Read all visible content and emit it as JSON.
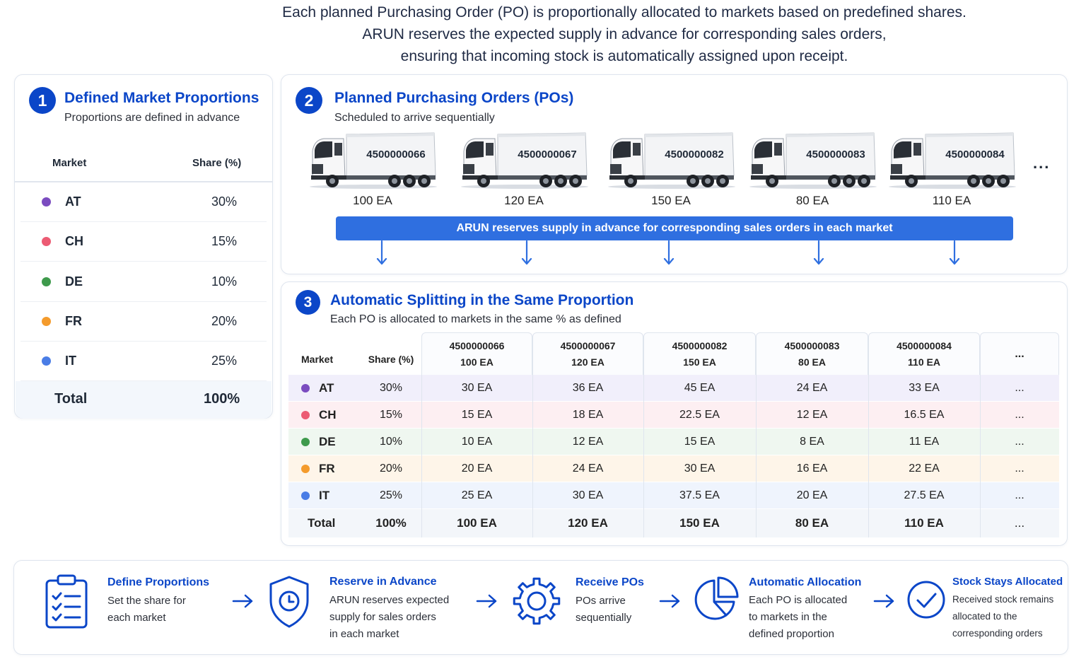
{
  "intro": {
    "line1": "Each planned Purchasing Order (PO) is proportionally allocated to markets based on predefined shares.",
    "line2": "ARUN reserves the expected supply in advance for corresponding sales orders,",
    "line3": "ensuring that incoming stock is automatically assigned upon receipt."
  },
  "colors": {
    "accent": "#0b46c8",
    "banner": "#2f6fe0",
    "AT": "#7b4cc0",
    "CH": "#ec5b73",
    "DE": "#3e9a4c",
    "FR": "#f49b2c",
    "IT": "#4a7de6"
  },
  "proportions": {
    "step": "1",
    "title": "Defined Market Proportions",
    "subtitle": "Proportions are defined in advance",
    "col_market": "Market",
    "col_share": "Share (%)",
    "rows": [
      {
        "market": "AT",
        "share": "30%"
      },
      {
        "market": "CH",
        "share": "15%"
      },
      {
        "market": "DE",
        "share": "10%"
      },
      {
        "market": "FR",
        "share": "20%"
      },
      {
        "market": "IT",
        "share": "25%"
      }
    ],
    "total_label": "Total",
    "total_value": "100%"
  },
  "pos": {
    "step": "2",
    "title": "Planned Purchasing Orders (POs)",
    "subtitle": "Scheduled to arrive sequentially",
    "trucks": [
      {
        "number": "4500000066",
        "qty": "100 EA"
      },
      {
        "number": "4500000067",
        "qty": "120 EA"
      },
      {
        "number": "4500000082",
        "qty": "150 EA"
      },
      {
        "number": "4500000083",
        "qty": "80 EA"
      },
      {
        "number": "4500000084",
        "qty": "110 EA"
      }
    ],
    "more": "...",
    "banner": "ARUN reserves supply in advance for corresponding sales orders in each market"
  },
  "splitting": {
    "step": "3",
    "title": "Automatic Splitting in the Same Proportion",
    "subtitle": "Each PO is allocated to markets in the same % as defined",
    "col_market": "Market",
    "col_share": "Share (%)",
    "columns": [
      {
        "po": "4500000066",
        "qty": "100 EA"
      },
      {
        "po": "4500000067",
        "qty": "120 EA"
      },
      {
        "po": "4500000082",
        "qty": "150 EA"
      },
      {
        "po": "4500000083",
        "qty": "80 EA"
      },
      {
        "po": "4500000084",
        "qty": "110 EA"
      }
    ],
    "more": "...",
    "rows": [
      {
        "market": "AT",
        "share": "30%",
        "values": [
          "30 EA",
          "36 EA",
          "45 EA",
          "24 EA",
          "33 EA"
        ],
        "more": "..."
      },
      {
        "market": "CH",
        "share": "15%",
        "values": [
          "15 EA",
          "18 EA",
          "22.5 EA",
          "12 EA",
          "16.5 EA"
        ],
        "more": "..."
      },
      {
        "market": "DE",
        "share": "10%",
        "values": [
          "10 EA",
          "12 EA",
          "15 EA",
          "8 EA",
          "11 EA"
        ],
        "more": "..."
      },
      {
        "market": "FR",
        "share": "20%",
        "values": [
          "20 EA",
          "24 EA",
          "30 EA",
          "16 EA",
          "22 EA"
        ],
        "more": "..."
      },
      {
        "market": "IT",
        "share": "25%",
        "values": [
          "25 EA",
          "30 EA",
          "37.5 EA",
          "20 EA",
          "27.5 EA"
        ],
        "more": "..."
      }
    ],
    "total": {
      "label": "Total",
      "share": "100%",
      "values": [
        "100 EA",
        "120 EA",
        "150 EA",
        "80 EA",
        "110 EA"
      ],
      "more": "..."
    }
  },
  "process": [
    {
      "icon": "clipboard-checklist-icon",
      "title": "Define Proportions",
      "desc": [
        "Set the share for",
        "each market"
      ]
    },
    {
      "icon": "shield-clock-icon",
      "title": "Reserve in Advance",
      "desc": [
        "ARUN reserves expected",
        "supply for sales orders",
        "in each market"
      ]
    },
    {
      "icon": "gear-icon",
      "title": "Receive POs",
      "desc": [
        "POs arrive",
        "sequentially"
      ]
    },
    {
      "icon": "pie-chart-icon",
      "title": "Automatic Allocation",
      "desc": [
        "Each PO is allocated",
        "to markets in the",
        "defined proportion"
      ]
    },
    {
      "icon": "check-circle-icon",
      "title": "Stock Stays Allocated",
      "desc": [
        "Received stock remains",
        "allocated to the",
        "corresponding orders"
      ]
    }
  ]
}
